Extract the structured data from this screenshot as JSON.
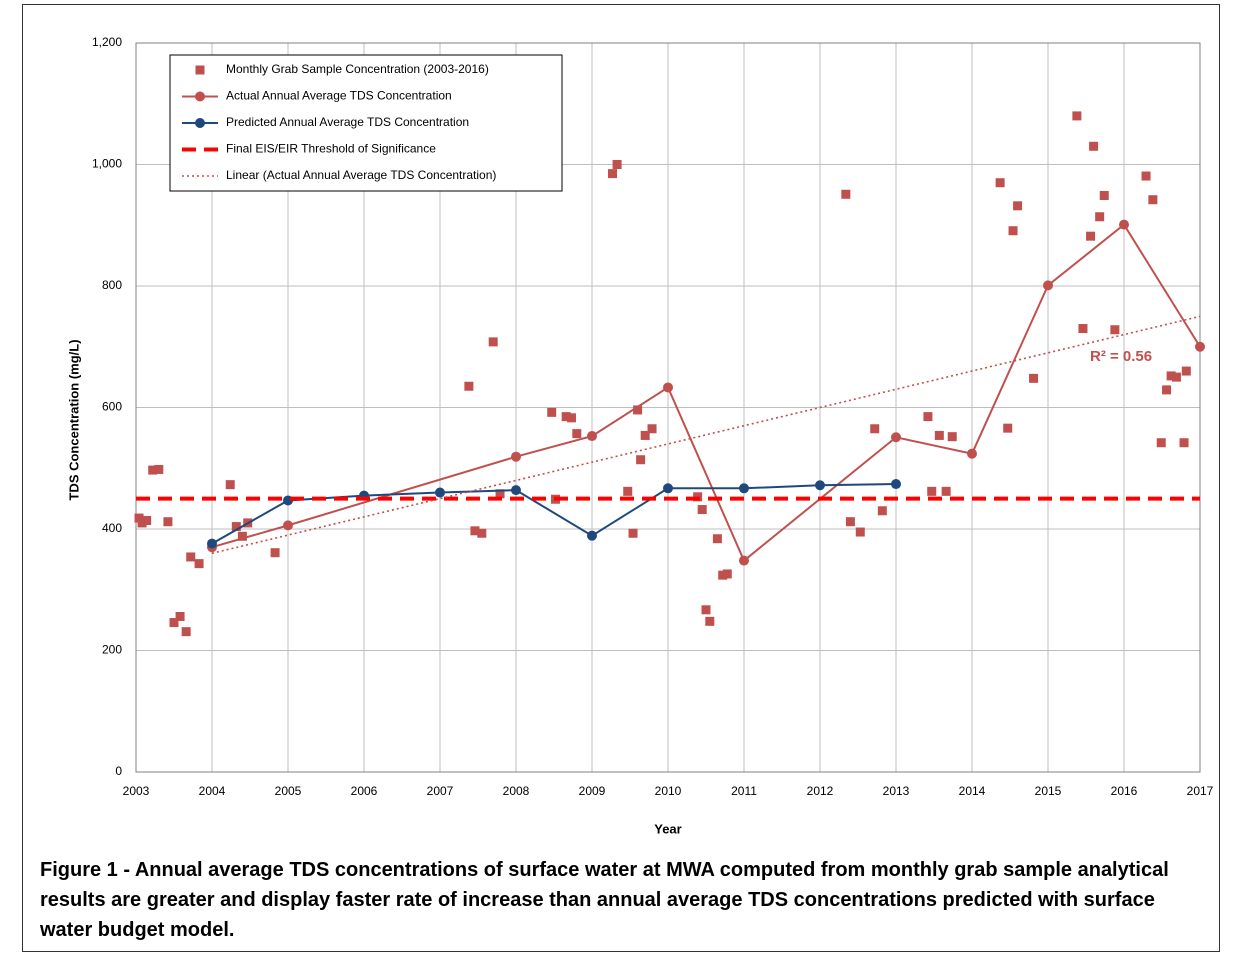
{
  "chart_data": {
    "type": "scatter-line",
    "x_label": "Year",
    "y_label": "TDS Concentration (mg/L)",
    "xlim": [
      2003,
      2017
    ],
    "xticks": [
      2003,
      2004,
      2005,
      2006,
      2007,
      2008,
      2009,
      2010,
      2011,
      2012,
      2013,
      2014,
      2015,
      2016,
      2017
    ],
    "ylim": [
      0,
      1200
    ],
    "yticks": [
      0,
      200,
      400,
      600,
      800,
      {
        "value": 1000,
        "label": "1,000"
      },
      {
        "value": 1200,
        "label": "1,200"
      }
    ],
    "grid": true,
    "legend": "upper left",
    "annotation": "R² = 0.56",
    "caption": "Figure 1 - Annual average TDS concentrations of surface water at MWA computed from monthly grab sample analytical results are greater and display faster rate of increase than annual average TDS concentrations predicted with surface water budget model.",
    "series": [
      {
        "name": "Monthly Grab Sample Concentration (2003-2016)",
        "style": "markers",
        "color": "#c0504d",
        "x": [
          2003.04,
          2003.08,
          2003.14,
          2003.22,
          2003.3,
          2003.42,
          2003.5,
          2003.58,
          2003.66,
          2003.72,
          2003.83,
          2004.24,
          2004.32,
          2004.4,
          2004.47,
          2004.83,
          2007.38,
          2007.46,
          2007.55,
          2007.7,
          2007.79,
          2008.47,
          2008.52,
          2008.66,
          2008.73,
          2008.8,
          2009.27,
          2009.33,
          2009.47,
          2009.54,
          2009.6,
          2009.64,
          2009.7,
          2009.79,
          2010.39,
          2010.45,
          2010.5,
          2010.55,
          2010.65,
          2010.72,
          2010.78,
          2012.34,
          2012.4,
          2012.53,
          2012.72,
          2012.82,
          2013.42,
          2013.47,
          2013.57,
          2013.66,
          2013.74,
          2014.37,
          2014.47,
          2014.54,
          2014.6,
          2014.81,
          2015.38,
          2015.46,
          2015.56,
          2015.6,
          2015.68,
          2015.74,
          2015.88,
          2016.29,
          2016.38,
          2016.49,
          2016.56,
          2016.62,
          2016.69,
          2016.79,
          2016.82
        ],
        "values": [
          418,
          410,
          414,
          497,
          498,
          412,
          246,
          256,
          231,
          354,
          343,
          473,
          404,
          388,
          410,
          361,
          635,
          397,
          393,
          708,
          458,
          592,
          449,
          585,
          583,
          557,
          985,
          1000,
          462,
          393,
          596,
          514,
          554,
          565,
          453,
          432,
          267,
          248,
          384,
          324,
          326,
          951,
          412,
          395,
          565,
          430,
          585,
          462,
          554,
          462,
          552,
          970,
          566,
          891,
          932,
          648,
          1080,
          730,
          882,
          1030,
          914,
          949,
          728,
          981,
          942,
          542,
          629,
          652,
          650,
          542,
          660
        ]
      },
      {
        "name": "Actual Annual Average TDS Concentration",
        "style": "line-markers",
        "color": "#c0504d",
        "x": [
          2004,
          2005,
          2008,
          2009,
          2010,
          2011,
          2013,
          2014,
          2015,
          2016,
          2017
        ],
        "values": [
          370,
          406,
          519,
          553,
          633,
          348,
          551,
          524,
          801,
          901,
          700
        ]
      },
      {
        "name": "Predicted Annual Average TDS Concentration",
        "style": "line-markers",
        "color": "#1f497d",
        "x": [
          2004,
          2005,
          2006,
          2007,
          2008,
          2009,
          2010,
          2011,
          2012,
          2013
        ],
        "values": [
          376,
          447,
          455,
          460,
          464,
          389,
          467,
          467,
          472,
          474
        ]
      },
      {
        "name": "Final EIS/EIR Threshold of Significance",
        "style": "dashed",
        "color": "#ff0000",
        "x": [
          2003,
          2017
        ],
        "values": [
          450,
          450
        ]
      },
      {
        "name": "Linear (Actual Annual Average TDS Concentration)",
        "style": "dotted",
        "color": "#c0504d",
        "x": [
          2004,
          2017
        ],
        "values": [
          360,
          750
        ]
      }
    ]
  }
}
